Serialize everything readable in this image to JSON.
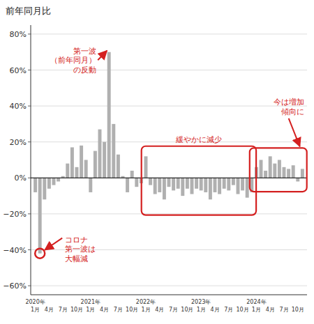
{
  "chart_data": {
    "type": "bar",
    "title": "前年同月比",
    "categories": [
      "2020年\n1月",
      null,
      null,
      "4月",
      null,
      null,
      "7月",
      null,
      null,
      "10月",
      null,
      null,
      "2021年\n1月",
      null,
      null,
      "4月",
      null,
      null,
      "7月",
      null,
      null,
      "10月",
      null,
      null,
      "2022年\n1月",
      null,
      null,
      "4月",
      null,
      null,
      "7月",
      null,
      null,
      "10月",
      null,
      null,
      "2023年\n1月",
      null,
      null,
      "4月",
      null,
      null,
      "7月",
      null,
      null,
      "10月",
      null,
      null,
      "2024年\n1月",
      null,
      null,
      "4月",
      null,
      null,
      "7月",
      null,
      null,
      "10月",
      null
    ],
    "values": [
      -0.08,
      -0.42,
      -0.12,
      -0.06,
      -0.04,
      -0.02,
      0.01,
      0.08,
      0.17,
      0.06,
      0.18,
      0.1,
      -0.08,
      0.15,
      0.27,
      0.2,
      0.7,
      0.3,
      0.13,
      0.01,
      -0.08,
      0.04,
      -0.05,
      -0.03,
      0.12,
      -0.04,
      -0.09,
      -0.08,
      -0.12,
      -0.05,
      -0.07,
      -0.06,
      -0.1,
      -0.06,
      -0.09,
      -0.06,
      -0.07,
      -0.08,
      -0.12,
      -0.08,
      -0.09,
      -0.06,
      -0.07,
      -0.04,
      -0.09,
      -0.07,
      -0.11,
      -0.08,
      0.06,
      0.1,
      0.04,
      0.12,
      0.08,
      0.1,
      0.06,
      0.05,
      0.07,
      -0.02,
      0.05
    ],
    "color": "#b0b0b0",
    "ylim": [
      -0.65,
      0.85
    ],
    "yticks": [
      {
        "value": -0.6,
        "label": "−60%"
      },
      {
        "value": -0.4,
        "label": "−40%"
      },
      {
        "value": -0.2,
        "label": "−20%"
      },
      {
        "value": 0.0,
        "label": "0%"
      },
      {
        "value": 0.2,
        "label": "20%"
      },
      {
        "value": 0.4,
        "label": "40%"
      },
      {
        "value": 0.6,
        "label": "60%"
      },
      {
        "value": 0.8,
        "label": "80%"
      }
    ],
    "grid": true,
    "annotations": [
      {
        "text": "コロナ\n第一波は\n大幅減",
        "x": 1,
        "y": -0.42,
        "color": "#d42020"
      },
      {
        "text": "第一波\n（前年同月）\nの反動",
        "x": 16,
        "y": 0.7,
        "color": "#d42020"
      },
      {
        "text": "緩やかに減少",
        "box": {
          "x": [
            23.5,
            47.5
          ],
          "y": [
            -0.195,
            0.165
          ]
        },
        "color": "#d42020"
      },
      {
        "text": "今は増加\n傾向に",
        "box": {
          "x": [
            47.0,
            58.5
          ],
          "y": [
            -0.065,
            0.155
          ]
        },
        "color": "#d42020"
      }
    ]
  }
}
